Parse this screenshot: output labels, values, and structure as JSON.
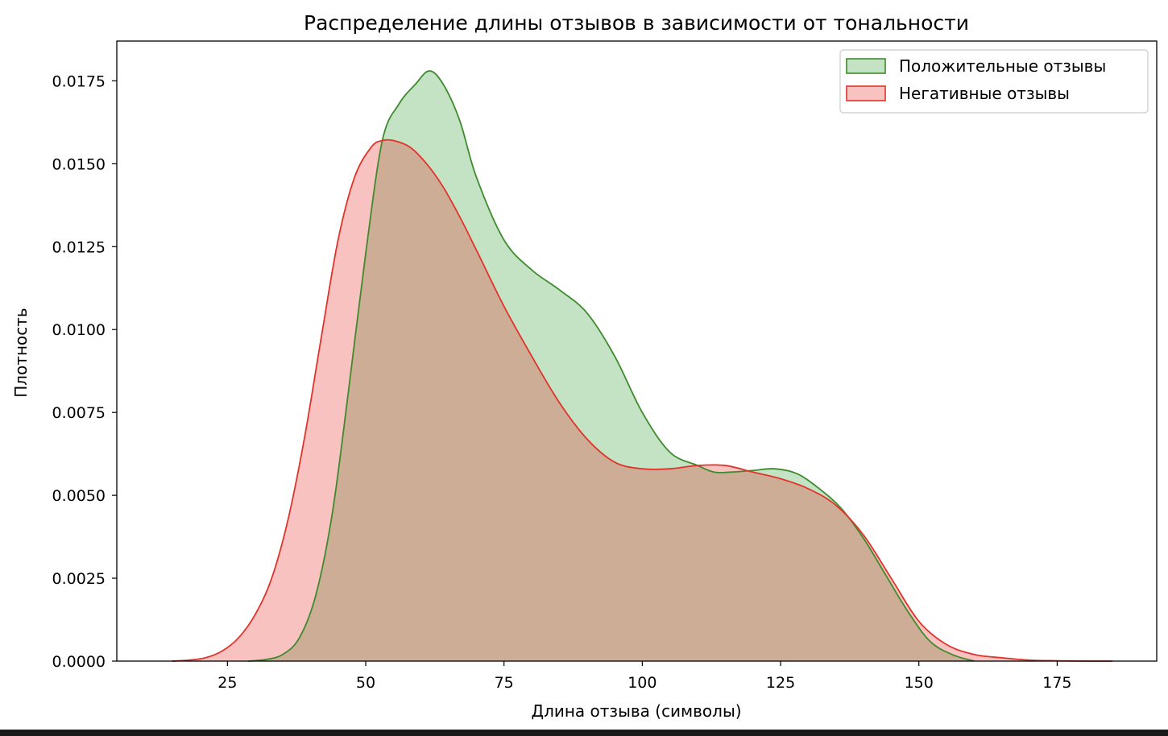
{
  "chart_data": {
    "type": "area",
    "title": "Распределение длины отзывов в зависимости от тональности",
    "xlabel": "Длина отзыва (символы)",
    "ylabel": "Плотность",
    "xlim": [
      5,
      193
    ],
    "ylim": [
      0,
      0.0187
    ],
    "xticks": [
      25,
      50,
      75,
      100,
      125,
      150,
      175
    ],
    "xtick_labels": [
      "25",
      "50",
      "75",
      "100",
      "125",
      "150",
      "175"
    ],
    "yticks": [
      0,
      0.0025,
      0.005,
      0.0075,
      0.01,
      0.0125,
      0.015,
      0.0175
    ],
    "ytick_labels": [
      "0.0000",
      "0.0025",
      "0.0050",
      "0.0075",
      "0.0100",
      "0.0125",
      "0.0150",
      "0.0175"
    ],
    "grid": false,
    "legend_position": "top-right",
    "series": [
      {
        "name": "Положительные отзывы",
        "line_color": "#3d8b2c",
        "fill_color": "rgba(0,128,0,0.23)",
        "x": [
          28.7,
          32,
          35,
          38,
          41,
          44,
          47,
          50,
          53,
          56,
          59,
          61.5,
          64,
          67,
          70,
          75,
          80,
          85,
          90,
          95,
          100,
          105,
          110,
          113,
          116,
          120,
          124,
          128,
          132,
          136,
          140,
          144,
          148,
          152,
          156,
          160
        ],
        "y": [
          0,
          5e-05,
          0.0002,
          0.0007,
          0.002,
          0.0045,
          0.0083,
          0.0123,
          0.0157,
          0.0168,
          0.0174,
          0.0178,
          0.0174,
          0.0163,
          0.0146,
          0.0127,
          0.0118,
          0.0112,
          0.0105,
          0.0092,
          0.0075,
          0.0063,
          0.0059,
          0.0057,
          0.0057,
          0.00575,
          0.0058,
          0.00565,
          0.0052,
          0.0046,
          0.0037,
          0.0026,
          0.0015,
          0.0006,
          0.0002,
          0
        ]
      },
      {
        "name": "Негативные отзывы",
        "line_color": "#e0342b",
        "fill_color": "rgba(230,35,30,0.28)",
        "x": [
          15,
          18,
          21,
          24,
          27,
          30,
          33,
          36,
          39,
          42,
          45,
          48,
          51,
          53,
          55,
          58,
          61,
          64,
          67,
          70,
          75,
          80,
          85,
          90,
          95,
          100,
          105,
          110,
          115,
          120,
          125,
          130,
          135,
          140,
          145,
          150,
          155,
          160,
          165,
          170,
          175,
          180,
          185
        ],
        "y": [
          0,
          3e-05,
          0.0001,
          0.0003,
          0.0007,
          0.0014,
          0.0025,
          0.0043,
          0.0068,
          0.0098,
          0.0127,
          0.0146,
          0.0155,
          0.0157,
          0.0157,
          0.0155,
          0.015,
          0.0143,
          0.0134,
          0.0124,
          0.0107,
          0.0092,
          0.0078,
          0.0067,
          0.006,
          0.0058,
          0.0058,
          0.0059,
          0.0059,
          0.0057,
          0.0055,
          0.0052,
          0.0047,
          0.0038,
          0.0025,
          0.0012,
          0.0005,
          0.0002,
          0.0001,
          3e-05,
          1e-05,
          0,
          0
        ]
      }
    ]
  }
}
